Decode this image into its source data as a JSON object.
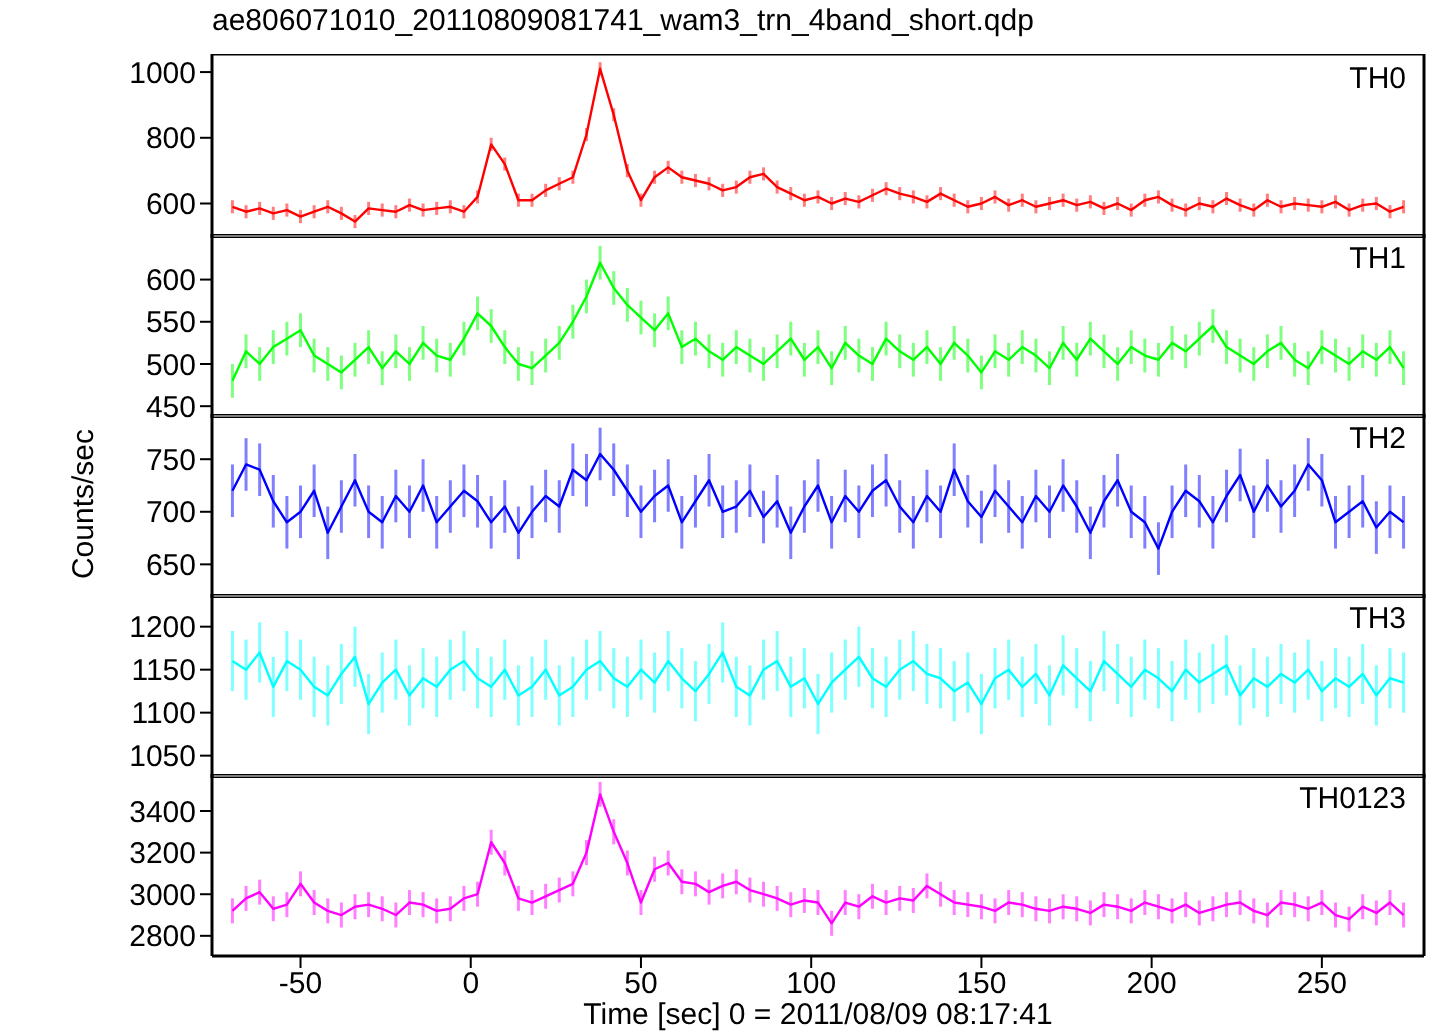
{
  "chart_data": [
    {
      "type": "line",
      "title": "ae806071010_20110809081741_wam3_trn_4band_short.qdp",
      "annotations": [
        "TH0"
      ],
      "color": "#ff0000",
      "xlim": [
        -76,
        280
      ],
      "xticks": [
        -50,
        0,
        50,
        100,
        150,
        200,
        250
      ],
      "ylim": [
        495,
        1055
      ],
      "yticks": [
        600,
        800,
        1000
      ],
      "tick_labels": "y",
      "x": [
        -70,
        -66,
        -62,
        -58,
        -54,
        -50,
        -46,
        -42,
        -38,
        -34,
        -30,
        -26,
        -22,
        -18,
        -14,
        -10,
        -6,
        -2,
        2,
        6,
        10,
        14,
        18,
        22,
        26,
        30,
        34,
        38,
        42,
        46,
        50,
        54,
        58,
        62,
        66,
        70,
        74,
        78,
        82,
        86,
        90,
        94,
        98,
        102,
        106,
        110,
        114,
        118,
        122,
        126,
        130,
        134,
        138,
        142,
        146,
        150,
        154,
        158,
        162,
        166,
        170,
        174,
        178,
        182,
        186,
        190,
        194,
        198,
        202,
        206,
        210,
        214,
        218,
        222,
        226,
        230,
        234,
        238,
        242,
        246,
        250,
        254,
        258,
        262,
        266,
        270,
        274
      ],
      "values": [
        590,
        575,
        585,
        570,
        580,
        560,
        575,
        590,
        570,
        545,
        585,
        580,
        575,
        595,
        580,
        585,
        590,
        575,
        620,
        780,
        720,
        610,
        610,
        640,
        660,
        680,
        810,
        1010,
        870,
        700,
        610,
        680,
        710,
        680,
        670,
        660,
        640,
        650,
        680,
        690,
        650,
        630,
        610,
        620,
        600,
        615,
        605,
        625,
        645,
        630,
        620,
        605,
        630,
        610,
        590,
        600,
        620,
        595,
        610,
        590,
        600,
        610,
        595,
        605,
        585,
        600,
        580,
        610,
        620,
        595,
        580,
        600,
        590,
        615,
        595,
        580,
        610,
        590,
        600,
        595,
        590,
        605,
        580,
        595,
        600,
        575,
        590
      ],
      "errors": [
        20,
        20,
        20,
        20,
        20,
        20,
        20,
        20,
        20,
        20,
        20,
        20,
        20,
        20,
        20,
        20,
        20,
        20,
        20,
        20,
        20,
        20,
        20,
        20,
        20,
        20,
        20,
        20,
        20,
        20,
        20,
        20,
        20,
        20,
        20,
        20,
        20,
        20,
        20,
        20,
        20,
        20,
        20,
        20,
        20,
        20,
        20,
        20,
        20,
        20,
        20,
        20,
        20,
        20,
        20,
        20,
        20,
        20,
        20,
        20,
        20,
        20,
        20,
        20,
        20,
        20,
        20,
        20,
        20,
        20,
        20,
        20,
        20,
        20,
        20,
        20,
        20,
        20,
        20,
        20,
        20,
        20,
        20,
        20,
        20,
        20,
        20
      ]
    },
    {
      "type": "line",
      "annotations": [
        "TH1"
      ],
      "color": "#00ff00",
      "xlim": [
        -76,
        280
      ],
      "xticks": [
        -50,
        0,
        50,
        100,
        150,
        200,
        250
      ],
      "ylim": [
        436,
        654
      ],
      "yticks": [
        450,
        500,
        550,
        600
      ],
      "tick_labels": "y",
      "x": [
        -70,
        -66,
        -62,
        -58,
        -54,
        -50,
        -46,
        -42,
        -38,
        -34,
        -30,
        -26,
        -22,
        -18,
        -14,
        -10,
        -6,
        -2,
        2,
        6,
        10,
        14,
        18,
        22,
        26,
        30,
        34,
        38,
        42,
        46,
        50,
        54,
        58,
        62,
        66,
        70,
        74,
        78,
        82,
        86,
        90,
        94,
        98,
        102,
        106,
        110,
        114,
        118,
        122,
        126,
        130,
        134,
        138,
        142,
        146,
        150,
        154,
        158,
        162,
        166,
        170,
        174,
        178,
        182,
        186,
        190,
        194,
        198,
        202,
        206,
        210,
        214,
        218,
        222,
        226,
        230,
        234,
        238,
        242,
        246,
        250,
        254,
        258,
        262,
        266,
        270,
        274
      ],
      "values": [
        480,
        515,
        500,
        520,
        530,
        540,
        510,
        500,
        490,
        505,
        520,
        495,
        515,
        500,
        525,
        510,
        505,
        530,
        560,
        545,
        520,
        500,
        495,
        510,
        525,
        550,
        580,
        620,
        590,
        570,
        555,
        540,
        560,
        520,
        530,
        515,
        505,
        520,
        510,
        500,
        515,
        530,
        505,
        520,
        495,
        525,
        510,
        500,
        530,
        515,
        505,
        520,
        500,
        525,
        510,
        490,
        515,
        505,
        520,
        510,
        495,
        525,
        505,
        530,
        515,
        500,
        520,
        510,
        505,
        525,
        515,
        530,
        545,
        520,
        510,
        500,
        515,
        525,
        505,
        495,
        520,
        510,
        500,
        515,
        505,
        520,
        495
      ],
      "errors": [
        20,
        20,
        20,
        20,
        20,
        20,
        20,
        20,
        20,
        20,
        20,
        20,
        20,
        20,
        20,
        20,
        20,
        20,
        20,
        20,
        20,
        20,
        20,
        20,
        20,
        20,
        20,
        20,
        20,
        20,
        20,
        20,
        20,
        20,
        20,
        20,
        20,
        20,
        20,
        20,
        20,
        20,
        20,
        20,
        20,
        20,
        20,
        20,
        20,
        20,
        20,
        20,
        20,
        20,
        20,
        20,
        20,
        20,
        20,
        20,
        20,
        20,
        20,
        20,
        20,
        20,
        20,
        20,
        20,
        20,
        20,
        20,
        20,
        20,
        20,
        20,
        20,
        20,
        20,
        20,
        20,
        20,
        20,
        20,
        20,
        20,
        20
      ]
    },
    {
      "type": "line",
      "ylabel": "Counts/sec",
      "annotations": [
        "TH2"
      ],
      "color": "#0000ff",
      "xlim": [
        -76,
        280
      ],
      "xticks": [
        -50,
        0,
        50,
        100,
        150,
        200,
        250
      ],
      "ylim": [
        618,
        793
      ],
      "yticks": [
        650,
        700,
        750
      ],
      "tick_labels": "y",
      "x": [
        -70,
        -66,
        -62,
        -58,
        -54,
        -50,
        -46,
        -42,
        -38,
        -34,
        -30,
        -26,
        -22,
        -18,
        -14,
        -10,
        -6,
        -2,
        2,
        6,
        10,
        14,
        18,
        22,
        26,
        30,
        34,
        38,
        42,
        46,
        50,
        54,
        58,
        62,
        66,
        70,
        74,
        78,
        82,
        86,
        90,
        94,
        98,
        102,
        106,
        110,
        114,
        118,
        122,
        126,
        130,
        134,
        138,
        142,
        146,
        150,
        154,
        158,
        162,
        166,
        170,
        174,
        178,
        182,
        186,
        190,
        194,
        198,
        202,
        206,
        210,
        214,
        218,
        222,
        226,
        230,
        234,
        238,
        242,
        246,
        250,
        254,
        258,
        262,
        266,
        270,
        274
      ],
      "values": [
        720,
        745,
        740,
        710,
        690,
        700,
        720,
        680,
        705,
        730,
        700,
        690,
        715,
        700,
        725,
        690,
        705,
        720,
        710,
        690,
        705,
        680,
        700,
        715,
        705,
        740,
        730,
        755,
        740,
        720,
        700,
        715,
        725,
        690,
        710,
        730,
        700,
        705,
        720,
        695,
        710,
        680,
        705,
        725,
        690,
        715,
        700,
        720,
        730,
        705,
        690,
        715,
        700,
        740,
        710,
        695,
        720,
        705,
        690,
        715,
        700,
        725,
        705,
        680,
        710,
        730,
        700,
        690,
        665,
        700,
        720,
        710,
        690,
        715,
        735,
        700,
        725,
        705,
        720,
        745,
        730,
        690,
        700,
        710,
        685,
        700,
        690
      ],
      "errors": [
        25,
        25,
        25,
        25,
        25,
        25,
        25,
        25,
        25,
        25,
        25,
        25,
        25,
        25,
        25,
        25,
        25,
        25,
        25,
        25,
        25,
        25,
        25,
        25,
        25,
        25,
        25,
        25,
        25,
        25,
        25,
        25,
        25,
        25,
        25,
        25,
        25,
        25,
        25,
        25,
        25,
        25,
        25,
        25,
        25,
        25,
        25,
        25,
        25,
        25,
        25,
        25,
        25,
        25,
        25,
        25,
        25,
        25,
        25,
        25,
        25,
        25,
        25,
        25,
        25,
        25,
        25,
        25,
        25,
        25,
        25,
        25,
        25,
        25,
        25,
        25,
        25,
        25,
        25,
        25,
        25,
        25,
        25,
        25,
        25,
        25,
        25
      ]
    },
    {
      "type": "line",
      "annotations": [
        "TH3"
      ],
      "color": "#00ffff",
      "xlim": [
        -76,
        280
      ],
      "xticks": [
        -50,
        0,
        50,
        100,
        150,
        200,
        250
      ],
      "ylim": [
        1024,
        1238
      ],
      "yticks": [
        1050,
        1100,
        1150,
        1200
      ],
      "tick_labels": "y",
      "x": [
        -70,
        -66,
        -62,
        -58,
        -54,
        -50,
        -46,
        -42,
        -38,
        -34,
        -30,
        -26,
        -22,
        -18,
        -14,
        -10,
        -6,
        -2,
        2,
        6,
        10,
        14,
        18,
        22,
        26,
        30,
        34,
        38,
        42,
        46,
        50,
        54,
        58,
        62,
        66,
        70,
        74,
        78,
        82,
        86,
        90,
        94,
        98,
        102,
        106,
        110,
        114,
        118,
        122,
        126,
        130,
        134,
        138,
        142,
        146,
        150,
        154,
        158,
        162,
        166,
        170,
        174,
        178,
        182,
        186,
        190,
        194,
        198,
        202,
        206,
        210,
        214,
        218,
        222,
        226,
        230,
        234,
        238,
        242,
        246,
        250,
        254,
        258,
        262,
        266,
        270,
        274
      ],
      "values": [
        1160,
        1150,
        1170,
        1130,
        1160,
        1150,
        1130,
        1120,
        1145,
        1165,
        1110,
        1135,
        1150,
        1120,
        1140,
        1130,
        1150,
        1160,
        1140,
        1130,
        1150,
        1120,
        1130,
        1150,
        1120,
        1130,
        1150,
        1160,
        1140,
        1130,
        1150,
        1135,
        1160,
        1140,
        1125,
        1145,
        1170,
        1130,
        1120,
        1150,
        1160,
        1130,
        1140,
        1110,
        1135,
        1150,
        1165,
        1140,
        1130,
        1150,
        1160,
        1145,
        1140,
        1125,
        1135,
        1110,
        1140,
        1150,
        1130,
        1145,
        1120,
        1155,
        1140,
        1125,
        1160,
        1145,
        1130,
        1150,
        1140,
        1125,
        1150,
        1135,
        1145,
        1155,
        1120,
        1140,
        1130,
        1145,
        1135,
        1150,
        1125,
        1140,
        1130,
        1145,
        1120,
        1140,
        1135
      ],
      "errors": [
        35,
        35,
        35,
        35,
        35,
        35,
        35,
        35,
        35,
        35,
        35,
        35,
        35,
        35,
        35,
        35,
        35,
        35,
        35,
        35,
        35,
        35,
        35,
        35,
        35,
        35,
        35,
        35,
        35,
        35,
        35,
        35,
        35,
        35,
        35,
        35,
        35,
        35,
        35,
        35,
        35,
        35,
        35,
        35,
        35,
        35,
        35,
        35,
        35,
        35,
        35,
        35,
        35,
        35,
        35,
        35,
        35,
        35,
        35,
        35,
        35,
        35,
        35,
        35,
        35,
        35,
        35,
        35,
        35,
        35,
        35,
        35,
        35,
        35,
        35,
        35,
        35,
        35,
        35,
        35,
        35,
        35,
        35,
        35,
        35,
        35,
        35
      ]
    },
    {
      "type": "line",
      "xlabel": "Time [sec] 0 = 2011/08/09 08:17:41",
      "annotations": [
        "TH0123"
      ],
      "color": "#ff00ff",
      "xlim": [
        -76,
        280
      ],
      "xticks": [
        -50,
        0,
        50,
        100,
        150,
        200,
        250
      ],
      "ylim": [
        2703,
        3578
      ],
      "yticks": [
        2800,
        3000,
        3200,
        3400
      ],
      "x": [
        -70,
        -66,
        -62,
        -58,
        -54,
        -50,
        -46,
        -42,
        -38,
        -34,
        -30,
        -26,
        -22,
        -18,
        -14,
        -10,
        -6,
        -2,
        2,
        6,
        10,
        14,
        18,
        22,
        26,
        30,
        34,
        38,
        42,
        46,
        50,
        54,
        58,
        62,
        66,
        70,
        74,
        78,
        82,
        86,
        90,
        94,
        98,
        102,
        106,
        110,
        114,
        118,
        122,
        126,
        130,
        134,
        138,
        142,
        146,
        150,
        154,
        158,
        162,
        166,
        170,
        174,
        178,
        182,
        186,
        190,
        194,
        198,
        202,
        206,
        210,
        214,
        218,
        222,
        226,
        230,
        234,
        238,
        242,
        246,
        250,
        254,
        258,
        262,
        266,
        270,
        274
      ],
      "values": [
        2920,
        2980,
        3010,
        2930,
        2950,
        3050,
        2960,
        2920,
        2900,
        2940,
        2950,
        2930,
        2900,
        2960,
        2950,
        2920,
        2930,
        2980,
        3000,
        3250,
        3150,
        2980,
        2960,
        2990,
        3020,
        3050,
        3200,
        3480,
        3300,
        3150,
        2960,
        3120,
        3150,
        3060,
        3050,
        3010,
        3040,
        3060,
        3020,
        3000,
        2980,
        2950,
        2970,
        2960,
        2860,
        2960,
        2940,
        2990,
        2960,
        2980,
        2970,
        3040,
        3000,
        2960,
        2950,
        2940,
        2920,
        2960,
        2950,
        2930,
        2920,
        2940,
        2930,
        2910,
        2950,
        2940,
        2920,
        2960,
        2940,
        2920,
        2950,
        2910,
        2930,
        2950,
        2960,
        2920,
        2900,
        2960,
        2950,
        2930,
        2960,
        2900,
        2880,
        2940,
        2910,
        2960,
        2900
      ],
      "errors": [
        60,
        60,
        60,
        60,
        60,
        60,
        60,
        60,
        60,
        60,
        60,
        60,
        60,
        60,
        60,
        60,
        60,
        60,
        60,
        60,
        60,
        60,
        60,
        60,
        60,
        60,
        60,
        60,
        60,
        60,
        60,
        60,
        60,
        60,
        60,
        60,
        60,
        60,
        60,
        60,
        60,
        60,
        60,
        60,
        60,
        60,
        60,
        60,
        60,
        60,
        60,
        60,
        60,
        60,
        60,
        60,
        60,
        60,
        60,
        60,
        60,
        60,
        60,
        60,
        60,
        60,
        60,
        60,
        60,
        60,
        60,
        60,
        60,
        60,
        60,
        60,
        60,
        60,
        60,
        60,
        60,
        60,
        60,
        60,
        60,
        60,
        60
      ]
    }
  ]
}
